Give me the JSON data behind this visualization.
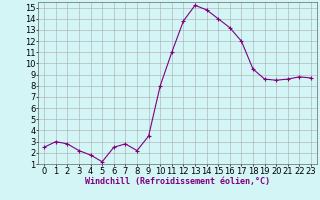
{
  "x": [
    0,
    1,
    2,
    3,
    4,
    5,
    6,
    7,
    8,
    9,
    10,
    11,
    12,
    13,
    14,
    15,
    16,
    17,
    18,
    19,
    20,
    21,
    22,
    23
  ],
  "y": [
    2.5,
    3.0,
    2.8,
    2.2,
    1.8,
    1.2,
    2.5,
    2.8,
    2.2,
    3.5,
    8.0,
    11.0,
    13.8,
    15.2,
    14.8,
    14.0,
    13.2,
    12.0,
    9.5,
    8.6,
    8.5,
    8.6,
    8.8,
    8.7
  ],
  "line_color": "#800080",
  "marker": "+",
  "markersize": 3,
  "linewidth": 0.8,
  "bg_color": "#d4f5f5",
  "grid_color": "#aaaaaa",
  "xlabel": "Windchill (Refroidissement éolien,°C)",
  "xlabel_fontsize": 6,
  "tick_fontsize": 6,
  "xlim": [
    -0.5,
    23.5
  ],
  "ylim": [
    1,
    15.5
  ],
  "yticks": [
    1,
    2,
    3,
    4,
    5,
    6,
    7,
    8,
    9,
    10,
    11,
    12,
    13,
    14,
    15
  ],
  "xticks": [
    0,
    1,
    2,
    3,
    4,
    5,
    6,
    7,
    8,
    9,
    10,
    11,
    12,
    13,
    14,
    15,
    16,
    17,
    18,
    19,
    20,
    21,
    22,
    23
  ]
}
